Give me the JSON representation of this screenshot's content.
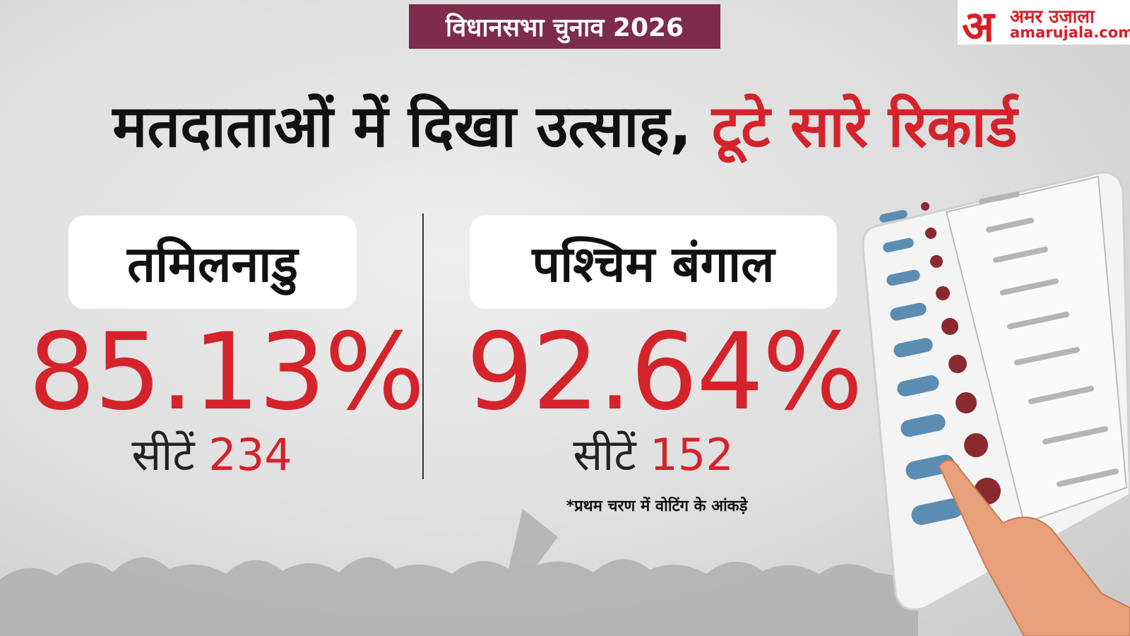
{
  "header": {
    "badge": "विधानसभा चुनाव 2026",
    "logo_mark": "अ",
    "logo_name": "अमर उजाला",
    "logo_url": "amarujala.com"
  },
  "title": {
    "part1": "मतदाताओं में दिखा उत्साह,",
    "part2": "टूटे सारे रिकार्ड"
  },
  "states": [
    {
      "name": "तमिलनाडु",
      "turnout": "85.13%",
      "seats_label": "सीटें",
      "seats": "234"
    },
    {
      "name": "पश्चिम बंगाल",
      "turnout": "92.64%",
      "seats_label": "सीटें",
      "seats": "152"
    }
  ],
  "footnote": "*प्रथम चरण में वोटिंग के आंकड़े"
}
